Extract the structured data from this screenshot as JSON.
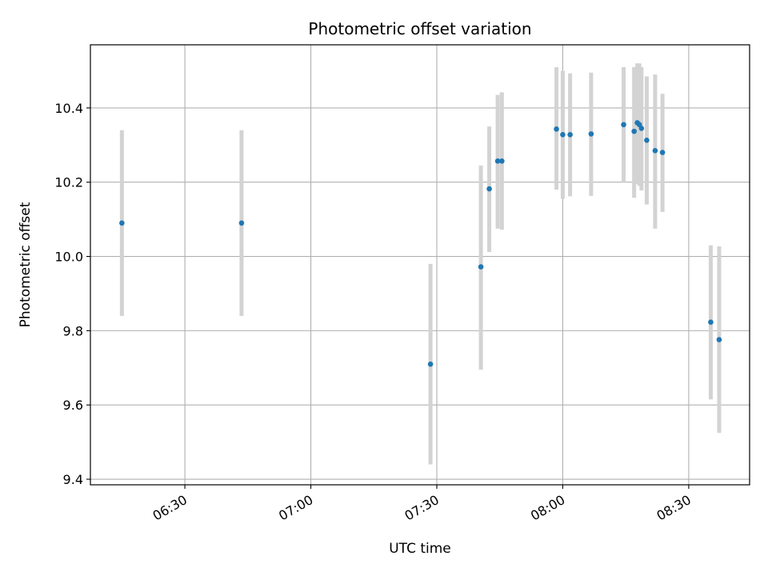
{
  "chart_data": {
    "type": "scatter",
    "title": "Photometric offset variation",
    "xlabel": "UTC time",
    "ylabel": "Photometric offset",
    "xlim": [
      "06:07:30",
      "08:44:30"
    ],
    "ylim": [
      9.385,
      10.57
    ],
    "x_ticks": [
      "06:30",
      "07:00",
      "07:30",
      "08:00",
      "08:30"
    ],
    "y_ticks": [
      "9.4",
      "9.6",
      "9.8",
      "10.0",
      "10.2",
      "10.4"
    ],
    "grid": true,
    "legend": "none",
    "colors": {
      "points": "#1f77b4",
      "error_bars": "#d3d3d3",
      "grid": "#b0b0b0"
    },
    "points": [
      {
        "x": "06:15:00",
        "y": 10.09,
        "ylow": 9.84,
        "yhigh": 10.34
      },
      {
        "x": "06:43:30",
        "y": 10.09,
        "ylow": 9.84,
        "yhigh": 10.34
      },
      {
        "x": "07:28:30",
        "y": 9.71,
        "ylow": 9.44,
        "yhigh": 9.98
      },
      {
        "x": "07:40:30",
        "y": 9.972,
        "ylow": 9.695,
        "yhigh": 10.245
      },
      {
        "x": "07:42:30",
        "y": 10.182,
        "ylow": 10.012,
        "yhigh": 10.35
      },
      {
        "x": "07:44:30",
        "y": 10.257,
        "ylow": 10.075,
        "yhigh": 10.435
      },
      {
        "x": "07:45:30",
        "y": 10.257,
        "ylow": 10.072,
        "yhigh": 10.442
      },
      {
        "x": "07:58:30",
        "y": 10.343,
        "ylow": 10.18,
        "yhigh": 10.51
      },
      {
        "x": "08:00:00",
        "y": 10.328,
        "ylow": 10.155,
        "yhigh": 10.5
      },
      {
        "x": "08:01:45",
        "y": 10.328,
        "ylow": 10.162,
        "yhigh": 10.493
      },
      {
        "x": "08:06:45",
        "y": 10.33,
        "ylow": 10.163,
        "yhigh": 10.495
      },
      {
        "x": "08:14:30",
        "y": 10.355,
        "ylow": 10.2,
        "yhigh": 10.51
      },
      {
        "x": "08:17:00",
        "y": 10.337,
        "ylow": 10.158,
        "yhigh": 10.51
      },
      {
        "x": "08:17:45",
        "y": 10.36,
        "ylow": 10.195,
        "yhigh": 10.52
      },
      {
        "x": "08:18:15",
        "y": 10.355,
        "ylow": 10.19,
        "yhigh": 10.52
      },
      {
        "x": "08:18:45",
        "y": 10.345,
        "ylow": 10.178,
        "yhigh": 10.51
      },
      {
        "x": "08:20:00",
        "y": 10.313,
        "ylow": 10.14,
        "yhigh": 10.485
      },
      {
        "x": "08:22:00",
        "y": 10.285,
        "ylow": 10.075,
        "yhigh": 10.49
      },
      {
        "x": "08:23:45",
        "y": 10.28,
        "ylow": 10.12,
        "yhigh": 10.438
      },
      {
        "x": "08:35:15",
        "y": 9.823,
        "ylow": 9.615,
        "yhigh": 10.03
      },
      {
        "x": "08:37:15",
        "y": 9.776,
        "ylow": 9.525,
        "yhigh": 10.027
      }
    ]
  }
}
